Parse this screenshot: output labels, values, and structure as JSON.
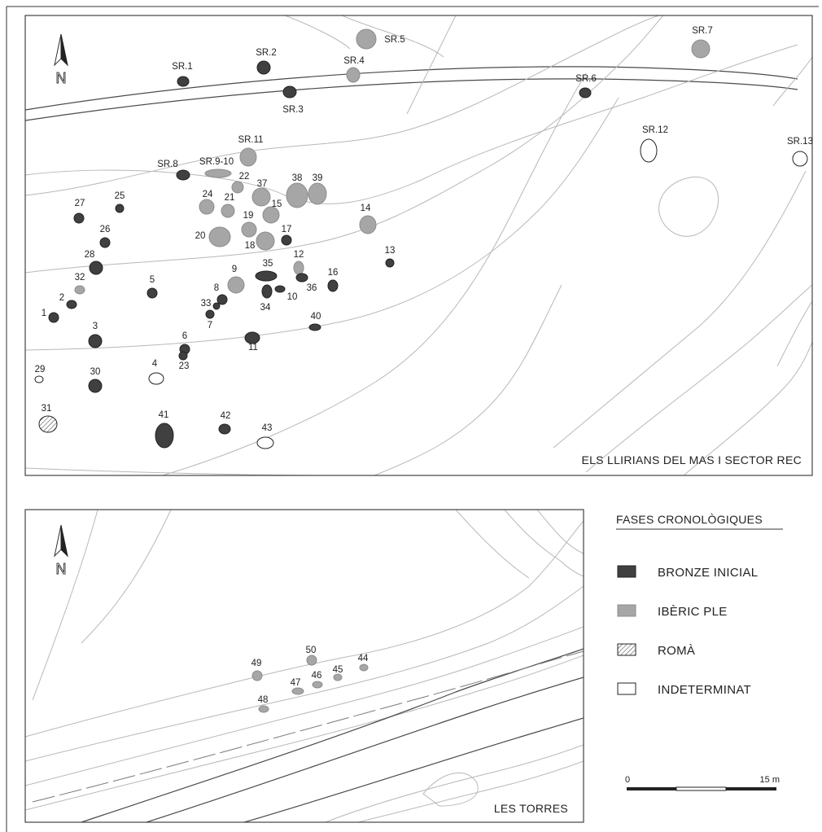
{
  "panels": {
    "top": {
      "title": "ELS LLIRIANS DEL MAS I SECTOR REC"
    },
    "bottom": {
      "title": "LES TORRES"
    }
  },
  "north_arrow": {
    "label": "N"
  },
  "legend": {
    "heading": "FASES CRONOLÒGIQUES",
    "items": [
      {
        "label": "BRONZE INICIAL",
        "phase": "bronze",
        "color": "#404040"
      },
      {
        "label": "IBÈRIC PLE",
        "phase": "iberic",
        "color": "#a6a6a6"
      },
      {
        "label": "ROMÀ",
        "phase": "roma",
        "color": "#ffffff"
      },
      {
        "label": "INDETERMINAT",
        "phase": "indet",
        "color": "#ffffff"
      }
    ]
  },
  "scale_bar": {
    "start": "0",
    "end": "15 m"
  },
  "features": {
    "top": [
      {
        "label": "SR.1",
        "phase": "bronze"
      },
      {
        "label": "SR.2",
        "phase": "bronze"
      },
      {
        "label": "SR.3",
        "phase": "bronze"
      },
      {
        "label": "SR.4",
        "phase": "iberic"
      },
      {
        "label": "SR.5",
        "phase": "iberic"
      },
      {
        "label": "SR.6",
        "phase": "bronze"
      },
      {
        "label": "SR.7",
        "phase": "iberic"
      },
      {
        "label": "SR.8",
        "phase": "bronze"
      },
      {
        "label": "SR.9-10",
        "phase": "iberic"
      },
      {
        "label": "SR.11",
        "phase": "iberic"
      },
      {
        "label": "SR.12",
        "phase": "indet"
      },
      {
        "label": "SR.13",
        "phase": "indet"
      },
      {
        "label": "1",
        "phase": "bronze"
      },
      {
        "label": "2",
        "phase": "bronze"
      },
      {
        "label": "3",
        "phase": "bronze"
      },
      {
        "label": "4",
        "phase": "indet"
      },
      {
        "label": "5",
        "phase": "bronze"
      },
      {
        "label": "6",
        "phase": "bronze"
      },
      {
        "label": "7",
        "phase": "bronze"
      },
      {
        "label": "8",
        "phase": "bronze"
      },
      {
        "label": "9",
        "phase": "iberic"
      },
      {
        "label": "10",
        "phase": "bronze"
      },
      {
        "label": "11",
        "phase": "bronze"
      },
      {
        "label": "12",
        "phase": "iberic"
      },
      {
        "label": "13",
        "phase": "bronze"
      },
      {
        "label": "14",
        "phase": "iberic"
      },
      {
        "label": "15",
        "phase": "iberic"
      },
      {
        "label": "16",
        "phase": "bronze"
      },
      {
        "label": "17",
        "phase": "bronze"
      },
      {
        "label": "18",
        "phase": "iberic"
      },
      {
        "label": "19",
        "phase": "iberic"
      },
      {
        "label": "20",
        "phase": "iberic"
      },
      {
        "label": "21",
        "phase": "iberic"
      },
      {
        "label": "22",
        "phase": "iberic"
      },
      {
        "label": "23",
        "phase": "bronze"
      },
      {
        "label": "24",
        "phase": "iberic"
      },
      {
        "label": "25",
        "phase": "bronze"
      },
      {
        "label": "26",
        "phase": "bronze"
      },
      {
        "label": "27",
        "phase": "bronze"
      },
      {
        "label": "28",
        "phase": "bronze"
      },
      {
        "label": "29",
        "phase": "indet"
      },
      {
        "label": "30",
        "phase": "bronze"
      },
      {
        "label": "31",
        "phase": "roma"
      },
      {
        "label": "32",
        "phase": "iberic"
      },
      {
        "label": "33",
        "phase": "bronze"
      },
      {
        "label": "34",
        "phase": "bronze"
      },
      {
        "label": "35",
        "phase": "bronze"
      },
      {
        "label": "36",
        "phase": "bronze"
      },
      {
        "label": "37",
        "phase": "iberic"
      },
      {
        "label": "38",
        "phase": "iberic"
      },
      {
        "label": "39",
        "phase": "iberic"
      },
      {
        "label": "40",
        "phase": "bronze"
      },
      {
        "label": "41",
        "phase": "bronze"
      },
      {
        "label": "42",
        "phase": "bronze"
      },
      {
        "label": "43",
        "phase": "indet"
      }
    ],
    "bottom": [
      {
        "label": "44",
        "phase": "iberic"
      },
      {
        "label": "45",
        "phase": "iberic"
      },
      {
        "label": "46",
        "phase": "iberic"
      },
      {
        "label": "47",
        "phase": "iberic"
      },
      {
        "label": "48",
        "phase": "iberic"
      },
      {
        "label": "49",
        "phase": "iberic"
      },
      {
        "label": "50",
        "phase": "iberic"
      }
    ]
  }
}
